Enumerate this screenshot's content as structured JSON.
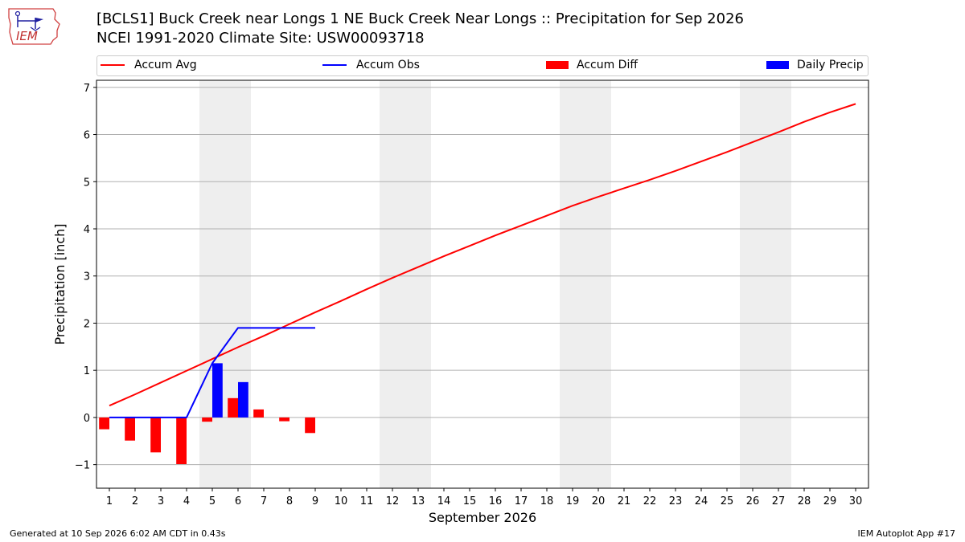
{
  "header": {
    "logo_text": "IEM",
    "title_line1": "[BCLS1] Buck Creek near Longs 1 NE Buck Creek Near Longs :: Precipitation for Sep 2026",
    "title_line2": "NCEI 1991-2020 Climate Site: USW00093718"
  },
  "legend": {
    "accum_avg": "Accum Avg",
    "accum_obs": "Accum Obs",
    "accum_diff": "Accum Diff",
    "daily_precip": "Daily Precip"
  },
  "footer": {
    "generated": "Generated at 10 Sep 2026 6:02 AM CDT in 0.43s",
    "app": "IEM Autoplot App #17"
  },
  "colors": {
    "avg": "#ff0000",
    "obs": "#0000ff",
    "diff": "#ff0000",
    "daily": "#0000ff",
    "weekend": "#eeeeee",
    "grid": "#b0b0b0"
  },
  "chart_data": {
    "type": "line",
    "xlabel": "September 2026",
    "ylabel": "Precipitation [inch]",
    "xlim": [
      0.5,
      30.5
    ],
    "ylim": [
      -1.5,
      7.15
    ],
    "yticks": [
      -1,
      0,
      1,
      2,
      3,
      4,
      5,
      6,
      7
    ],
    "ytick_labels": [
      "−1",
      "0",
      "1",
      "2",
      "3",
      "4",
      "5",
      "6",
      "7"
    ],
    "days": [
      1,
      2,
      3,
      4,
      5,
      6,
      7,
      8,
      9,
      10,
      11,
      12,
      13,
      14,
      15,
      16,
      17,
      18,
      19,
      20,
      21,
      22,
      23,
      24,
      25,
      26,
      27,
      28,
      29,
      30
    ],
    "weekend_bands": [
      [
        5,
        6
      ],
      [
        12,
        13
      ],
      [
        19,
        20
      ],
      [
        26,
        27
      ]
    ],
    "accum_avg": [
      0.25,
      0.49,
      0.74,
      0.99,
      1.24,
      1.49,
      1.73,
      1.98,
      2.23,
      2.47,
      2.72,
      2.96,
      3.19,
      3.42,
      3.64,
      3.86,
      4.07,
      4.28,
      4.49,
      4.68,
      4.86,
      5.04,
      5.23,
      5.43,
      5.63,
      5.84,
      6.05,
      6.27,
      6.47,
      6.65
    ],
    "accum_obs": [
      0.0,
      0.0,
      0.0,
      0.0,
      1.15,
      1.9,
      1.9,
      1.9,
      1.9
    ],
    "accum_diff": [
      -0.25,
      -0.49,
      -0.74,
      -0.99,
      -0.09,
      0.41,
      0.17,
      -0.08,
      -0.33
    ],
    "daily_precip": [
      0.0,
      0.0,
      0.0,
      0.0,
      1.15,
      0.75,
      0.0,
      0.0,
      0.0
    ],
    "grid": true,
    "legend_position": "top"
  }
}
